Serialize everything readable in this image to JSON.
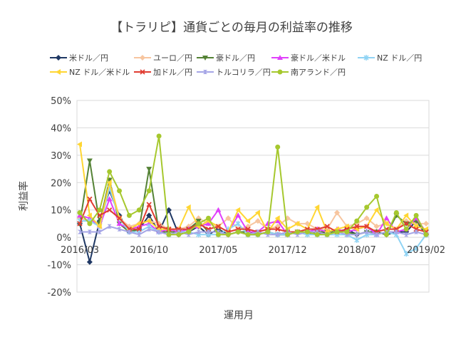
{
  "chart_data": {
    "type": "line",
    "title": "【トラリピ】通貨ごとの毎月の利益率の推移",
    "ylabel": "利益率",
    "xlabel": "運用月",
    "ylim": [
      -0.2,
      0.5
    ],
    "yticks": [
      -0.2,
      -0.1,
      0,
      0.1,
      0.2,
      0.3,
      0.4,
      0.5
    ],
    "ytick_labels": [
      "-20%",
      "-10%",
      "0%",
      "10%",
      "20%",
      "30%",
      "40%",
      "50%"
    ],
    "x_tick_labels": [
      "2016/03",
      "2016/10",
      "2017/05",
      "2017/12",
      "2018/07",
      "2019/02"
    ],
    "x_tick_index": [
      0,
      7,
      14,
      21,
      28,
      35
    ],
    "n_points": 36,
    "grid": true,
    "legend_position": "top",
    "series": [
      {
        "name": "米ドル／円",
        "color": "#1f3864",
        "marker": "diamond",
        "values": [
          0.05,
          -0.09,
          0.06,
          0.17,
          0.08,
          0.02,
          0.03,
          0.08,
          0.02,
          0.1,
          0.01,
          0.02,
          0.04,
          0.01,
          0.03,
          0.01,
          0.02,
          0.01,
          0.01,
          0.02,
          0.01,
          0.01,
          0.02,
          0.02,
          0.01,
          0.02,
          0.02,
          0.03,
          0.01,
          0.02,
          0.02,
          0.01,
          0.02,
          0.02,
          0.06,
          0.01
        ]
      },
      {
        "name": "ユーロ／円",
        "color": "#f7c59f",
        "marker": "diamond",
        "values": [
          0.07,
          0.06,
          0.05,
          0.21,
          0.07,
          0.04,
          0.05,
          0.06,
          0.05,
          0.03,
          0.03,
          0.04,
          0.07,
          0.05,
          0.04,
          0.07,
          0.03,
          0.04,
          0.06,
          0.03,
          0.04,
          0.07,
          0.05,
          0.05,
          0.03,
          0.03,
          0.09,
          0.04,
          0.05,
          0.07,
          0.04,
          0.05,
          0.03,
          0.06,
          0.05,
          0.05
        ]
      },
      {
        "name": "豪ドル／円",
        "color": "#548235",
        "marker": "triangle-down",
        "values": [
          0.05,
          0.28,
          0.05,
          0.21,
          0.05,
          0.02,
          0.03,
          0.25,
          0.02,
          0.02,
          0.02,
          0.03,
          0.06,
          0.02,
          0.02,
          0.01,
          0.02,
          0.02,
          0.01,
          0.02,
          0.01,
          0.01,
          0.02,
          0.01,
          0.02,
          0.02,
          0.02,
          0.02,
          0.01,
          0.02,
          0.02,
          0.01,
          0.08,
          0.05,
          0.06,
          0.02
        ]
      },
      {
        "name": "豪ドル／米ドル",
        "color": "#e040fb",
        "marker": "triangle",
        "values": [
          0.08,
          0.07,
          0.04,
          0.14,
          0.05,
          0.03,
          0.04,
          0.05,
          0.02,
          0.03,
          0.02,
          0.03,
          0.04,
          0.05,
          0.1,
          0.02,
          0.08,
          0.02,
          0.02,
          0.05,
          0.06,
          0.01,
          0.02,
          0.02,
          0.03,
          0.02,
          0.03,
          0.02,
          0.03,
          0.04,
          0.01,
          0.07,
          0.02,
          0.03,
          0.07,
          0.02
        ]
      },
      {
        "name": "NZ ドル／円",
        "color": "#8fd3f4",
        "marker": "star",
        "values": [
          0.06,
          0.06,
          0.04,
          0.18,
          0.07,
          0.02,
          0.02,
          0.04,
          0.02,
          0.01,
          0.02,
          0.02,
          0.01,
          0.01,
          0.01,
          0.03,
          0.05,
          0.01,
          0.01,
          0.02,
          0.01,
          0.01,
          0.02,
          0.01,
          0.01,
          0.01,
          0.01,
          0.01,
          -0.01,
          0.01,
          0.01,
          0.02,
          0.01,
          -0.06,
          -0.04,
          0.01
        ]
      },
      {
        "name": "NZ ドル／米ドル",
        "color": "#ffd633",
        "marker": "triangle-left",
        "values": [
          0.34,
          0.08,
          0.04,
          0.2,
          0.07,
          0.03,
          0.05,
          0.06,
          0.03,
          0.03,
          0.03,
          0.11,
          0.04,
          0.06,
          0.04,
          0.02,
          0.1,
          0.06,
          0.09,
          0.02,
          0.07,
          0.03,
          0.05,
          0.03,
          0.11,
          0.02,
          0.03,
          0.04,
          0.03,
          0.04,
          0.1,
          0.05,
          0.03,
          0.08,
          0.04,
          0.03
        ]
      },
      {
        "name": "加ドル／円",
        "color": "#e03c31",
        "marker": "x",
        "values": [
          0.05,
          0.14,
          0.08,
          0.1,
          0.07,
          0.03,
          0.03,
          0.12,
          0.04,
          0.03,
          0.03,
          0.03,
          0.05,
          0.03,
          0.04,
          0.02,
          0.03,
          0.03,
          0.02,
          0.03,
          0.03,
          0.02,
          0.02,
          0.03,
          0.03,
          0.04,
          0.02,
          0.03,
          0.04,
          0.04,
          0.02,
          0.03,
          0.03,
          0.05,
          0.03,
          0.02
        ]
      },
      {
        "name": "トルコリラ／円",
        "color": "#a5a5e6",
        "marker": "hourglass",
        "values": [
          0.02,
          0.02,
          0.02,
          0.04,
          0.03,
          0.02,
          0.01,
          0.03,
          0.02,
          0.01,
          0.02,
          0.01,
          0.02,
          0.02,
          0.02,
          0.01,
          0.02,
          0.01,
          0.02,
          0.01,
          0.01,
          0.02,
          0.01,
          0.02,
          0.02,
          0.01,
          0.02,
          0.01,
          0.01,
          0.02,
          0.01,
          0.02,
          0.02,
          0.01,
          0.02,
          0.01
        ]
      },
      {
        "name": "南アランド／円",
        "color": "#a6c82e",
        "marker": "circle",
        "values": [
          0.09,
          0.05,
          0.1,
          0.24,
          0.17,
          0.08,
          0.1,
          0.17,
          0.37,
          0.01,
          0.01,
          0.02,
          0.05,
          0.07,
          0.01,
          0.01,
          0.02,
          0.01,
          0.01,
          0.02,
          0.33,
          0.01,
          0.02,
          0.02,
          0.01,
          0.01,
          0.02,
          0.02,
          0.06,
          0.11,
          0.15,
          0.01,
          0.09,
          0.03,
          0.08,
          0.01
        ]
      }
    ]
  }
}
